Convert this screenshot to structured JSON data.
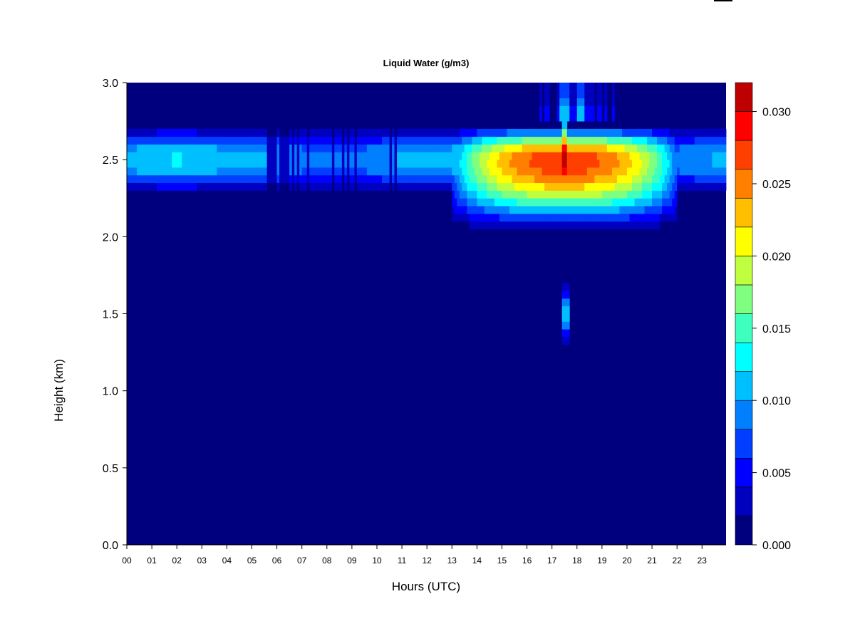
{
  "chart_data": {
    "type": "heatmap",
    "title": "Liquid Water (g/m3)",
    "xlabel": "Hours (UTC)",
    "ylabel": "Height (km)",
    "x_ticks": [
      "00",
      "01",
      "02",
      "03",
      "04",
      "05",
      "06",
      "07",
      "08",
      "09",
      "10",
      "11",
      "12",
      "13",
      "14",
      "15",
      "16",
      "17",
      "18",
      "19",
      "20",
      "21",
      "22",
      "23"
    ],
    "y_ticks": [
      0.0,
      0.5,
      1.0,
      1.5,
      2.0,
      2.5,
      3.0
    ],
    "y_tick_labels": [
      "0.0",
      "0.5",
      "1.0",
      "1.5",
      "2.0",
      "2.5",
      "3.0"
    ],
    "xlim": [
      0,
      24
    ],
    "ylim": [
      0,
      3
    ],
    "colorbar": {
      "range": [
        0,
        0.032
      ],
      "tick_values": [
        0.0,
        0.005,
        0.01,
        0.015,
        0.02,
        0.025,
        0.03
      ],
      "tick_labels": [
        "0.000",
        "0.005",
        "0.010",
        "0.015",
        "0.020",
        "0.025",
        "0.030"
      ],
      "levels": [
        0,
        0.002,
        0.004,
        0.006,
        0.008,
        0.01,
        0.012,
        0.014,
        0.016,
        0.018,
        0.02,
        0.022,
        0.024,
        0.026,
        0.028,
        0.03,
        0.032
      ],
      "colors": [
        "#00007F",
        "#0000BF",
        "#0000FF",
        "#003FFF",
        "#007FFF",
        "#00BFFF",
        "#00FFFF",
        "#3FFFBF",
        "#7FFF7F",
        "#BFFF3F",
        "#FFFF00",
        "#FFBF00",
        "#FF7F00",
        "#FF3F00",
        "#FF0000",
        "#BF0000",
        "#7F0000"
      ]
    },
    "features": [
      {
        "name": "persistent cloud layer",
        "hours": [
          0,
          24
        ],
        "height_km": [
          2.25,
          2.75
        ],
        "peak_lwc": 0.013
      },
      {
        "name": "afternoon deep cloud",
        "hours": [
          13,
          22
        ],
        "height_km": [
          2.0,
          2.75
        ],
        "peak_lwc": 0.03
      },
      {
        "name": "strong peak",
        "hour": 17.5,
        "height_km": 2.5,
        "peak_lwc": 0.032
      },
      {
        "name": "low isolated cloud",
        "hour": 17.55,
        "height_km": [
          1.25,
          1.75
        ],
        "peak_lwc": 0.012
      },
      {
        "name": "upper streaks",
        "hours": [
          16.5,
          19.5
        ],
        "height_km": [
          2.75,
          3.0
        ],
        "peak_lwc": 0.012
      }
    ]
  }
}
